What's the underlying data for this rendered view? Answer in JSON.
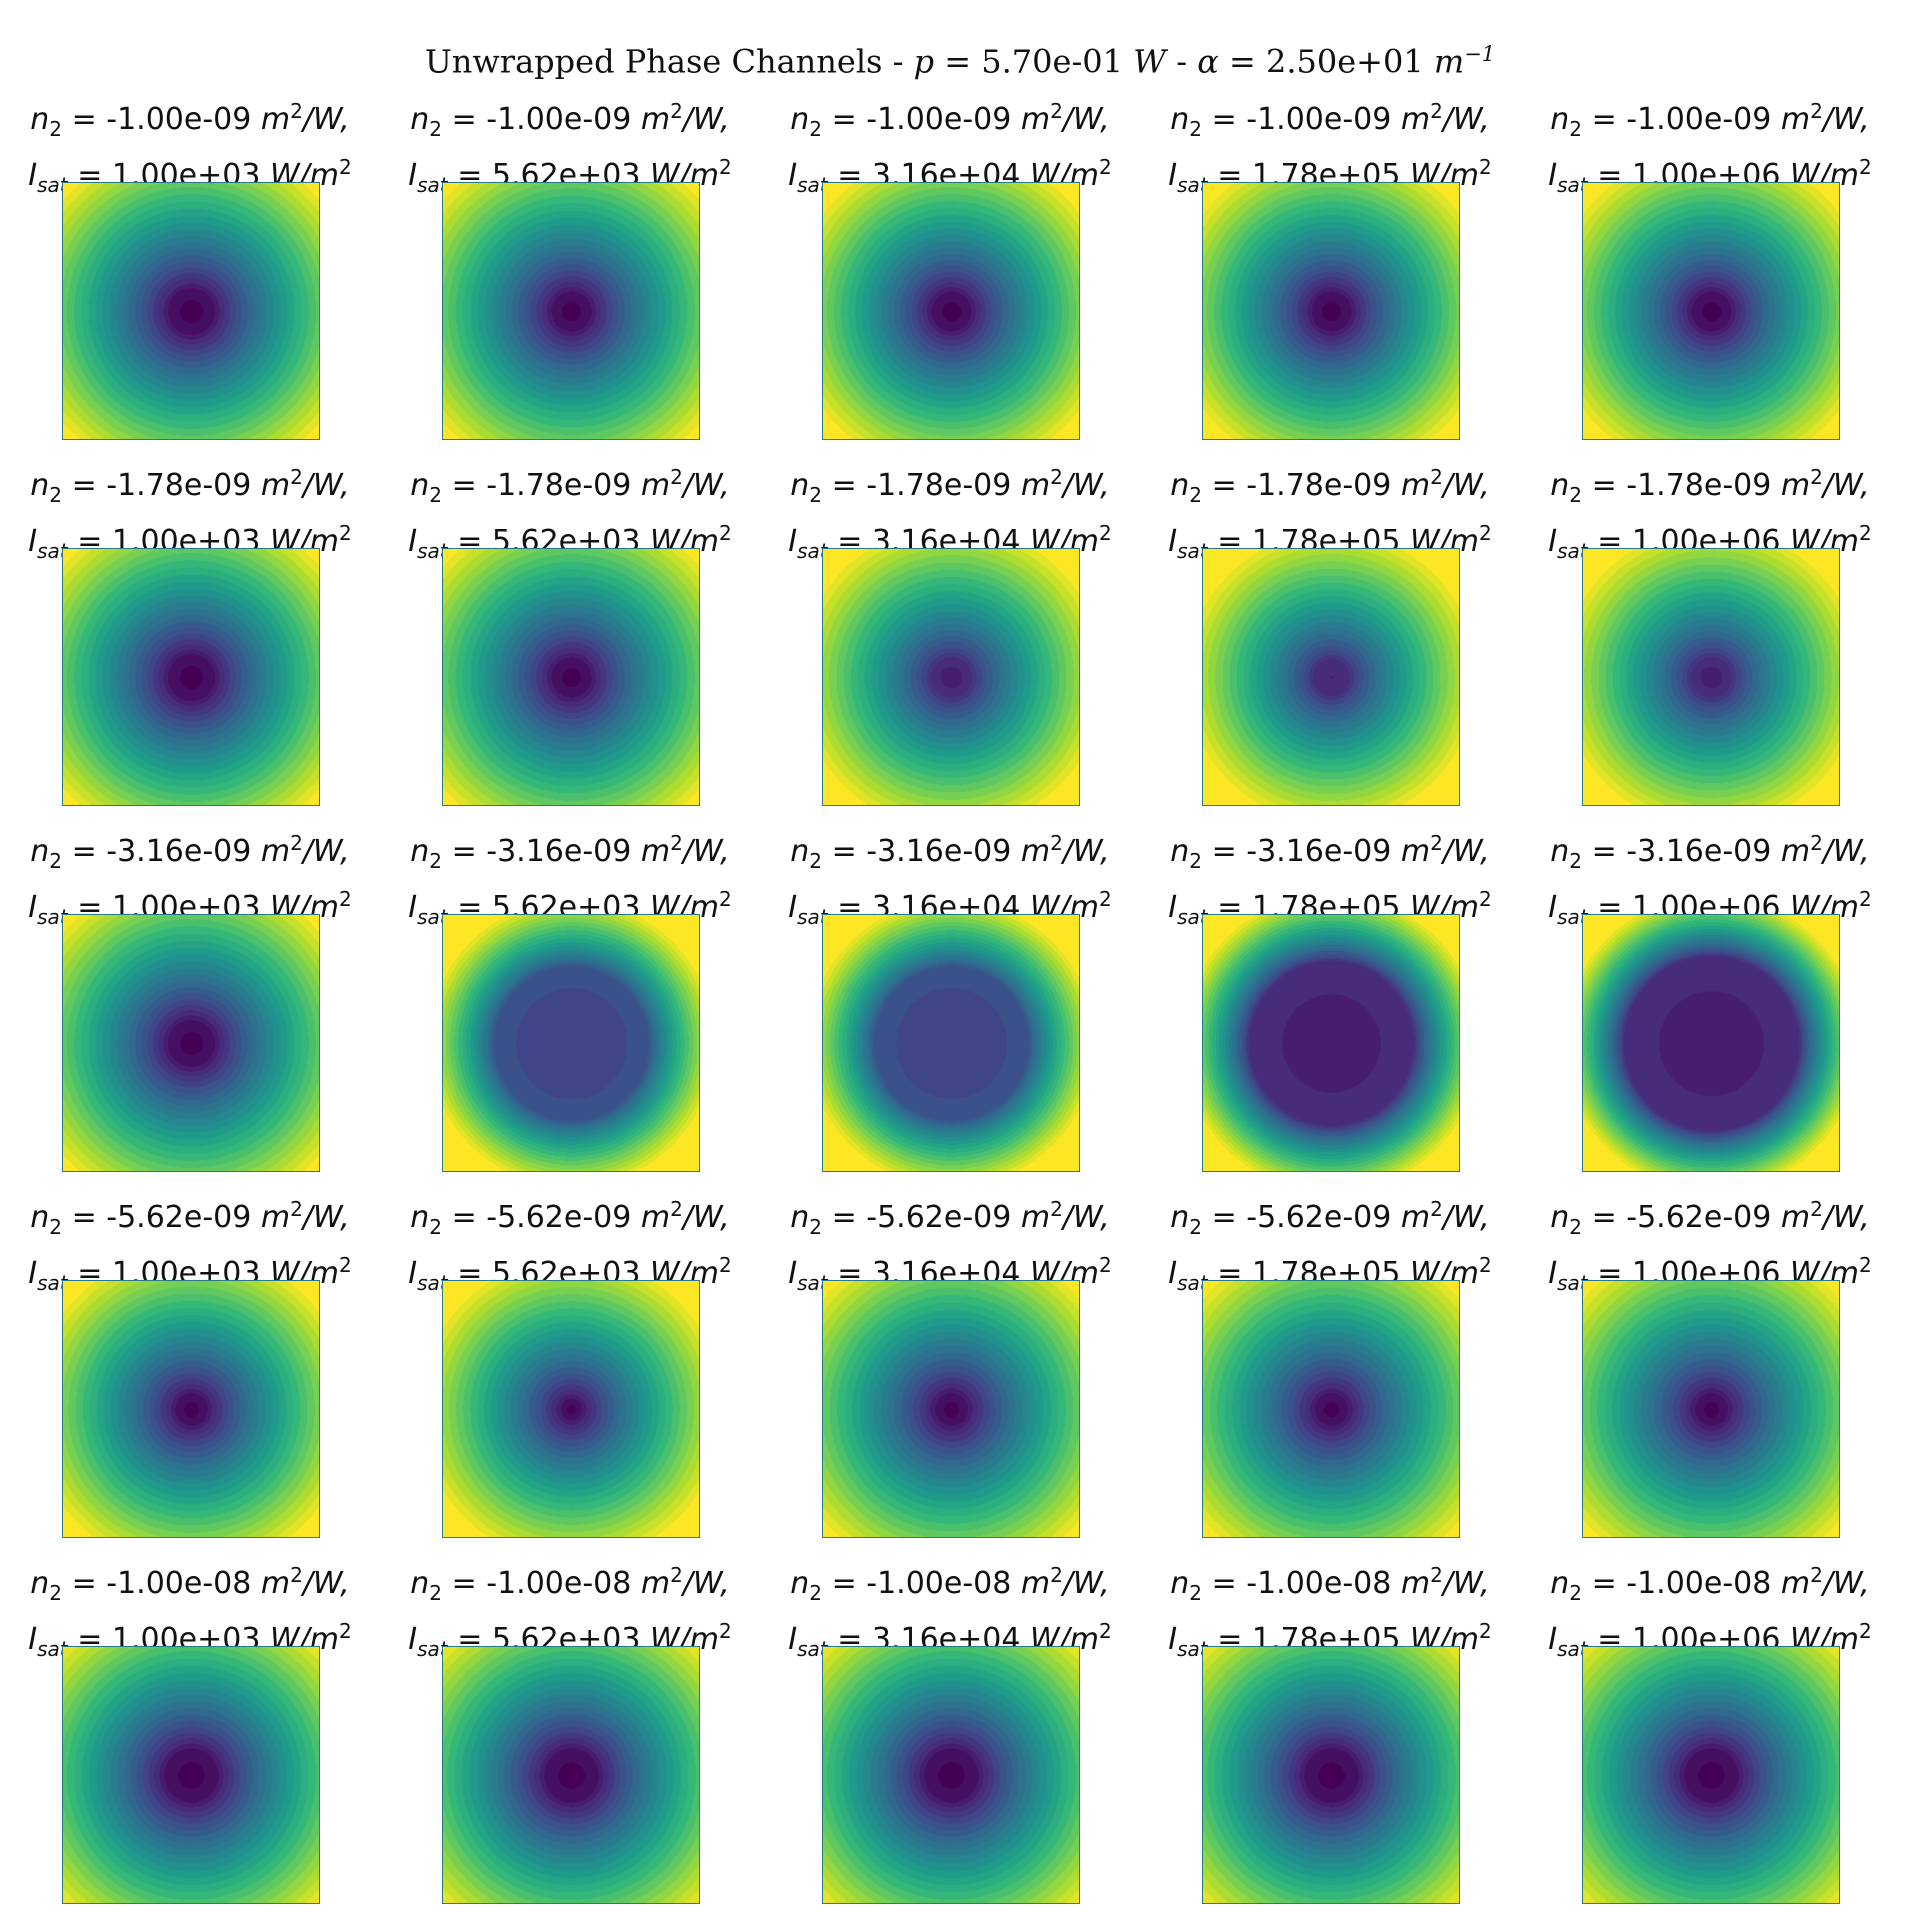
{
  "title": {
    "prefix": "Unwrapped Phase Channels - ",
    "p_symbol": "p",
    "p_value": " = 5.70e-01 ",
    "p_unit": "W",
    "sep": " - ",
    "alpha_symbol": "α",
    "alpha_value": " = 2.50e+01 ",
    "alpha_unit": "m",
    "alpha_exp": "−1"
  },
  "label_parts": {
    "n2_symbol": "n",
    "n2_sub": "2",
    "n2_unit_m": "m",
    "n2_unit_sup": "2",
    "n2_unit_w": "/W,",
    "isat_symbol": "I",
    "isat_sub": "sat",
    "isat_unit": "W/m",
    "isat_unit_sup": "2"
  },
  "chart_data": {
    "type": "heatmap",
    "colormap": "viridis",
    "rows": 5,
    "cols": 5,
    "n2_values": [
      "-1.00e-09",
      "-1.78e-09",
      "-3.16e-09",
      "-5.62e-09",
      "-1.00e-08"
    ],
    "isat_values": [
      "1.00e+03",
      "5.62e+03",
      "3.16e+04",
      "1.78e+05",
      "1.00e+06"
    ],
    "colors": {
      "viridis": [
        "#440154",
        "#482878",
        "#3e4989",
        "#31688e",
        "#26828e",
        "#1f9e89",
        "#35b779",
        "#6ece58",
        "#b5de2b",
        "#fde725"
      ]
    },
    "panels": [
      [
        {
          "center_level": 0.0,
          "center_radius": 0.12,
          "falloff": 1.0
        },
        {
          "center_level": 0.0,
          "center_radius": 0.1,
          "falloff": 1.0
        },
        {
          "center_level": 0.0,
          "center_radius": 0.1,
          "falloff": 1.05
        },
        {
          "center_level": 0.0,
          "center_radius": 0.1,
          "falloff": 1.05
        },
        {
          "center_level": 0.0,
          "center_radius": 0.1,
          "falloff": 1.05
        }
      ],
      [
        {
          "center_level": 0.0,
          "center_radius": 0.12,
          "falloff": 1.0
        },
        {
          "center_level": 0.0,
          "center_radius": 0.1,
          "falloff": 1.0
        },
        {
          "center_level": 0.08,
          "center_radius": 0.1,
          "falloff": 1.1
        },
        {
          "center_level": 0.1,
          "center_radius": 0.1,
          "falloff": 1.15
        },
        {
          "center_level": 0.08,
          "center_radius": 0.1,
          "falloff": 1.12
        }
      ],
      [
        {
          "center_level": 0.0,
          "center_radius": 0.12,
          "falloff": 1.0
        },
        {
          "center_level": 0.2,
          "center_radius": 0.42,
          "falloff": 1.35
        },
        {
          "center_level": 0.2,
          "center_radius": 0.42,
          "falloff": 1.35
        },
        {
          "center_level": 0.08,
          "center_radius": 0.45,
          "falloff": 1.3
        },
        {
          "center_level": 0.08,
          "center_radius": 0.48,
          "falloff": 1.35
        }
      ],
      [
        {
          "center_level": 0.0,
          "center_radius": 0.08,
          "falloff": 1.05
        },
        {
          "center_level": 0.0,
          "center_radius": 0.05,
          "falloff": 1.1
        },
        {
          "center_level": 0.0,
          "center_radius": 0.08,
          "falloff": 1.0
        },
        {
          "center_level": 0.0,
          "center_radius": 0.08,
          "falloff": 1.0
        },
        {
          "center_level": 0.0,
          "center_radius": 0.08,
          "falloff": 1.0
        }
      ],
      [
        {
          "center_level": 0.0,
          "center_radius": 0.14,
          "falloff": 0.95
        },
        {
          "center_level": 0.0,
          "center_radius": 0.14,
          "falloff": 0.95
        },
        {
          "center_level": 0.0,
          "center_radius": 0.14,
          "falloff": 0.95
        },
        {
          "center_level": 0.0,
          "center_radius": 0.14,
          "falloff": 0.95
        },
        {
          "center_level": 0.0,
          "center_radius": 0.14,
          "falloff": 0.95
        }
      ]
    ]
  }
}
